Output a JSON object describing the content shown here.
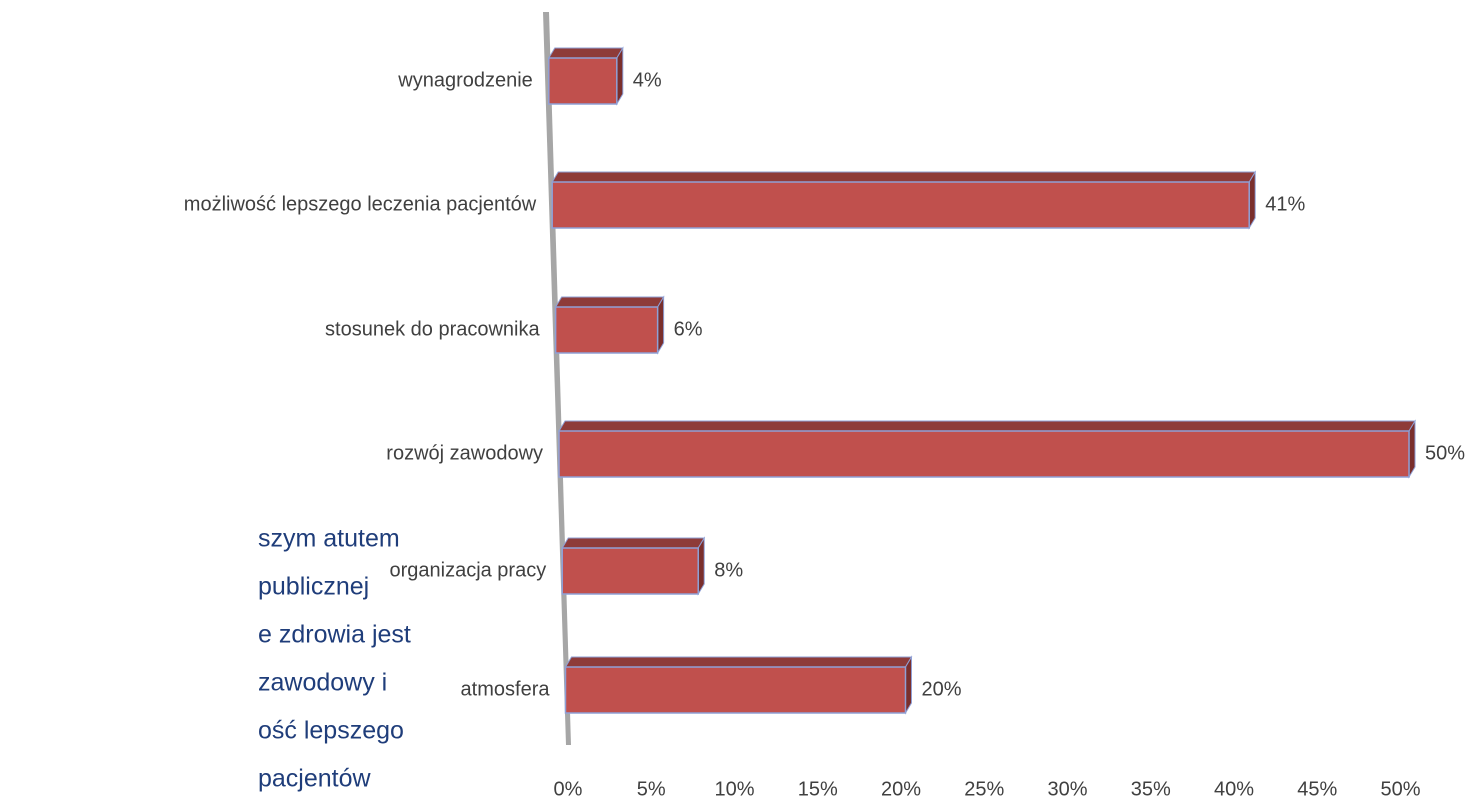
{
  "chart_data": {
    "type": "bar3d_horizontal",
    "categories": [
      "wynagrodzenie",
      "możliwość lepszego leczenia pacjentów",
      "stosunek do pracownika",
      "rozwój zawodowy",
      "organizacja pracy",
      "atmosfera"
    ],
    "values": [
      4,
      41,
      6,
      50,
      8,
      20
    ],
    "value_labels": [
      "4%",
      "41%",
      "6%",
      "50%",
      "8%",
      "20%"
    ],
    "color": "#c0504d",
    "xlim": [
      0,
      50
    ],
    "xticks": [
      {
        "value": 0,
        "label": "0%"
      },
      {
        "value": 5,
        "label": "5%"
      },
      {
        "value": 10,
        "label": "10%"
      },
      {
        "value": 15,
        "label": "15%"
      },
      {
        "value": 20,
        "label": "20%"
      },
      {
        "value": 25,
        "label": "25%"
      },
      {
        "value": 30,
        "label": "30%"
      },
      {
        "value": 35,
        "label": "35%"
      },
      {
        "value": 40,
        "label": "40%"
      },
      {
        "value": 45,
        "label": "45%"
      },
      {
        "value": 50,
        "label": "50%"
      }
    ],
    "annotation_lines": [
      "szym atutem",
      "publicznej",
      "e zdrowia jest",
      "zawodowy i",
      "ość lepszego",
      "pacjentów"
    ]
  }
}
